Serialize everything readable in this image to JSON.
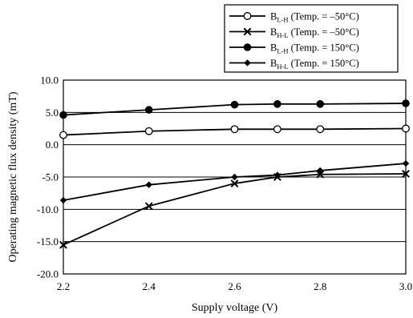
{
  "chart_data": {
    "type": "line",
    "xlabel": "Supply voltage  (V)",
    "ylabel": "Operating magnetic flux density  (mT)",
    "xlim": [
      2.2,
      3.0
    ],
    "ylim": [
      -20.0,
      10.0
    ],
    "x_ticks": [
      "2.2",
      "2.4",
      "2.6",
      "2.8",
      "3.0"
    ],
    "y_ticks": [
      "10.0",
      "5.0",
      "0.0",
      "-5.0",
      "-10.0",
      "-15.0",
      "-20.0"
    ],
    "grid": "horizontal",
    "legend_position": "top-right",
    "series": [
      {
        "name_main": "B",
        "name_sub": "L-H",
        "name_rest": " (Temp. = –50°C)",
        "marker": "open-circle",
        "x": [
          2.2,
          2.4,
          2.6,
          2.7,
          2.8,
          3.0
        ],
        "y": [
          1.5,
          2.1,
          2.4,
          2.4,
          2.4,
          2.5
        ]
      },
      {
        "name_main": "B",
        "name_sub": "H-L",
        "name_rest": " (Temp. = –50°C)",
        "marker": "cross",
        "x": [
          2.2,
          2.4,
          2.6,
          2.7,
          2.8,
          3.0
        ],
        "y": [
          -15.5,
          -9.5,
          -6.0,
          -5.0,
          -4.6,
          -4.5
        ]
      },
      {
        "name_main": "B",
        "name_sub": "L-H",
        "name_rest": " (Temp. = 150°C)",
        "marker": "filled-circle",
        "x": [
          2.2,
          2.4,
          2.6,
          2.7,
          2.8,
          3.0
        ],
        "y": [
          4.6,
          5.4,
          6.2,
          6.3,
          6.3,
          6.4
        ]
      },
      {
        "name_main": "B",
        "name_sub": "H-L",
        "name_rest": " (Temp. = 150°C)",
        "marker": "filled-diamond",
        "x": [
          2.2,
          2.4,
          2.6,
          2.7,
          2.8,
          3.0
        ],
        "y": [
          -8.6,
          -6.2,
          -5.0,
          -4.7,
          -4.0,
          -2.9
        ]
      }
    ]
  }
}
